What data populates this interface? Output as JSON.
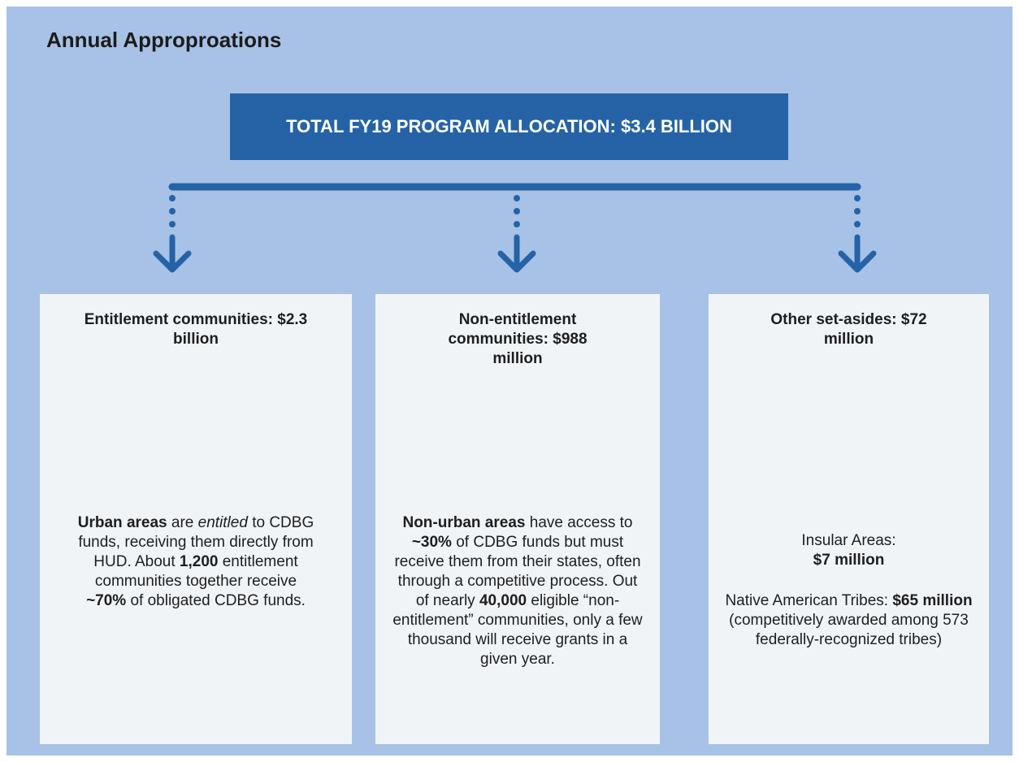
{
  "title": "Annual Approproations",
  "total": "TOTAL FY19 PROGRAM ALLOCATION: $3.4 BILLION",
  "panels": [
    {
      "heading": "Entitlement communities: $2.3 billion",
      "body": [
        "Urban areas",
        " are ",
        "entitled",
        " to CDBG funds, receiving them directly from HUD. About ",
        "1,200",
        " entitlement communities together receive ",
        "~70%",
        " of obligated CDBG funds."
      ]
    },
    {
      "heading": "Non-entitlement communities: $988 million",
      "body": [
        "Non-urban areas",
        " have access to ",
        "~30%",
        " of CDBG funds but must receive them from their states, often through a competitive process. Out of nearly ",
        "40,000",
        " eligible “non-entitlement” communities, only a few thousand will receive grants in a given year."
      ]
    },
    {
      "heading": "Other set-asides: $72 million",
      "insular": [
        "Insular Areas:",
        "$7 million"
      ],
      "tribes": [
        "Native American Tribes: ",
        "$65 million",
        " (competitively awarded among 573 federally-recognized tribes)"
      ]
    }
  ]
}
